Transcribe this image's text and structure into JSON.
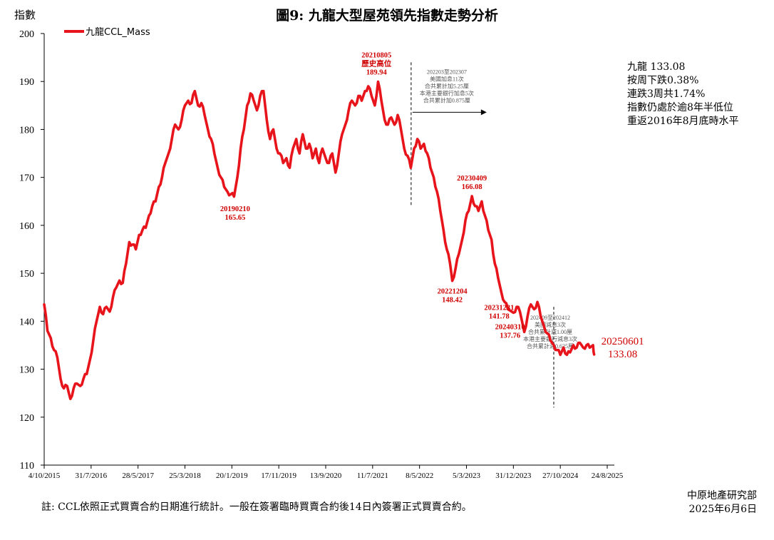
{
  "chart_data": {
    "type": "line",
    "title": "圖9: 九龍大型屋苑領先指數走勢分析",
    "ylabel": "指數",
    "ylim": [
      110,
      200
    ],
    "yticks": [
      110,
      120,
      130,
      140,
      150,
      160,
      170,
      180,
      190,
      200
    ],
    "x_ticks": [
      "4/10/2015",
      "31/7/2016",
      "28/5/2017",
      "25/3/2018",
      "20/1/2019",
      "17/11/2019",
      "13/9/2020",
      "11/7/2021",
      "8/5/2022",
      "5/3/2023",
      "31/12/2023",
      "27/10/2024",
      "24/8/2025"
    ],
    "grid": false,
    "legend_position": "top-left",
    "series": [
      {
        "name": "九龍CCL_Mass",
        "color": "#e8141b",
        "points": [
          [
            "2015-10-04",
            143.5
          ],
          [
            "2015-10-25",
            138
          ],
          [
            "2015-11-15",
            136.5
          ],
          [
            "2015-12-06",
            134
          ],
          [
            "2015-12-27",
            132.5
          ],
          [
            "2016-01-17",
            128
          ],
          [
            "2016-02-07",
            126
          ],
          [
            "2016-02-28",
            126.5
          ],
          [
            "2016-03-20",
            123.8
          ],
          [
            "2016-04-10",
            126
          ],
          [
            "2016-05-01",
            127
          ],
          [
            "2016-05-22",
            126.5
          ],
          [
            "2016-06-12",
            128
          ],
          [
            "2016-07-03",
            129
          ],
          [
            "2016-07-24",
            132
          ],
          [
            "2016-08-14",
            136
          ],
          [
            "2016-09-04",
            140
          ],
          [
            "2016-09-25",
            143
          ],
          [
            "2016-10-16",
            141.5
          ],
          [
            "2016-11-06",
            143
          ],
          [
            "2016-11-27",
            142
          ],
          [
            "2016-12-18",
            145
          ],
          [
            "2017-01-08",
            147
          ],
          [
            "2017-01-29",
            148.5
          ],
          [
            "2017-02-19",
            148
          ],
          [
            "2017-03-12",
            152
          ],
          [
            "2017-04-02",
            156.5
          ],
          [
            "2017-04-23",
            156
          ],
          [
            "2017-05-14",
            155
          ],
          [
            "2017-06-04",
            158
          ],
          [
            "2017-06-25",
            159
          ],
          [
            "2017-07-16",
            159.5
          ],
          [
            "2017-08-06",
            162
          ],
          [
            "2017-08-27",
            164
          ],
          [
            "2017-09-17",
            165
          ],
          [
            "2017-10-08",
            168
          ],
          [
            "2017-10-29",
            170
          ],
          [
            "2017-11-19",
            173
          ],
          [
            "2017-12-10",
            175
          ],
          [
            "2017-12-31",
            178
          ],
          [
            "2018-01-21",
            181
          ],
          [
            "2018-02-11",
            180
          ],
          [
            "2018-03-04",
            182
          ],
          [
            "2018-03-25",
            185
          ],
          [
            "2018-04-15",
            186
          ],
          [
            "2018-05-06",
            185.5
          ],
          [
            "2018-05-27",
            188
          ],
          [
            "2018-06-17",
            185
          ],
          [
            "2018-07-08",
            185.5
          ],
          [
            "2018-07-29",
            183
          ],
          [
            "2018-08-19",
            180
          ],
          [
            "2018-09-09",
            178
          ],
          [
            "2018-09-30",
            175
          ],
          [
            "2018-10-21",
            172
          ],
          [
            "2018-11-11",
            170
          ],
          [
            "2018-12-02",
            168
          ],
          [
            "2018-12-23",
            167
          ],
          [
            "2019-01-13",
            166.5
          ],
          [
            "2019-02-03",
            166
          ],
          [
            "2019-02-24",
            170
          ],
          [
            "2019-03-17",
            176
          ],
          [
            "2019-04-07",
            180
          ],
          [
            "2019-04-28",
            185
          ],
          [
            "2019-05-19",
            187.5
          ],
          [
            "2019-06-09",
            186
          ],
          [
            "2019-06-30",
            184
          ],
          [
            "2019-07-21",
            187
          ],
          [
            "2019-08-11",
            188
          ],
          [
            "2019-09-01",
            182
          ],
          [
            "2019-09-22",
            178
          ],
          [
            "2019-10-13",
            180
          ],
          [
            "2019-11-03",
            176
          ],
          [
            "2019-11-24",
            175
          ],
          [
            "2019-12-15",
            173
          ],
          [
            "2020-01-05",
            174
          ],
          [
            "2020-01-26",
            172
          ],
          [
            "2020-02-16",
            176
          ],
          [
            "2020-03-08",
            178
          ],
          [
            "2020-03-29",
            175
          ],
          [
            "2020-04-19",
            179
          ],
          [
            "2020-05-10",
            176
          ],
          [
            "2020-05-31",
            177
          ],
          [
            "2020-06-21",
            174
          ],
          [
            "2020-07-12",
            176
          ],
          [
            "2020-08-02",
            173
          ],
          [
            "2020-08-23",
            176
          ],
          [
            "2020-09-13",
            174
          ],
          [
            "2020-10-04",
            173
          ],
          [
            "2020-10-25",
            175
          ],
          [
            "2020-11-15",
            171
          ],
          [
            "2020-12-06",
            175
          ],
          [
            "2020-12-27",
            179
          ],
          [
            "2021-01-17",
            181
          ],
          [
            "2021-02-07",
            184
          ],
          [
            "2021-02-28",
            186
          ],
          [
            "2021-03-21",
            185
          ],
          [
            "2021-04-11",
            187
          ],
          [
            "2021-05-02",
            186
          ],
          [
            "2021-05-23",
            188
          ],
          [
            "2021-06-13",
            189
          ],
          [
            "2021-07-04",
            187
          ],
          [
            "2021-07-25",
            185
          ],
          [
            "2021-08-15",
            189.94
          ],
          [
            "2021-09-05",
            186
          ],
          [
            "2021-09-26",
            182
          ],
          [
            "2021-10-17",
            181
          ],
          [
            "2021-11-07",
            182.5
          ],
          [
            "2021-11-28",
            181
          ],
          [
            "2021-12-19",
            183
          ],
          [
            "2022-01-09",
            180
          ],
          [
            "2022-01-30",
            176
          ],
          [
            "2022-02-20",
            174.5
          ],
          [
            "2022-03-13",
            172
          ],
          [
            "2022-04-03",
            176
          ],
          [
            "2022-04-24",
            178
          ],
          [
            "2022-05-15",
            176
          ],
          [
            "2022-06-05",
            177
          ],
          [
            "2022-06-26",
            175
          ],
          [
            "2022-07-17",
            172
          ],
          [
            "2022-08-07",
            170
          ],
          [
            "2022-08-28",
            167
          ],
          [
            "2022-09-18",
            163
          ],
          [
            "2022-10-09",
            159
          ],
          [
            "2022-10-30",
            155
          ],
          [
            "2022-11-20",
            152
          ],
          [
            "2022-12-04",
            148.42
          ],
          [
            "2022-12-25",
            151
          ],
          [
            "2023-01-15",
            154
          ],
          [
            "2023-02-05",
            157
          ],
          [
            "2023-02-26",
            161
          ],
          [
            "2023-03-19",
            163
          ],
          [
            "2023-04-09",
            166.08
          ],
          [
            "2023-04-30",
            164
          ],
          [
            "2023-05-21",
            163
          ],
          [
            "2023-06-11",
            165
          ],
          [
            "2023-07-02",
            162
          ],
          [
            "2023-07-23",
            159
          ],
          [
            "2023-08-13",
            157
          ],
          [
            "2023-09-03",
            152
          ],
          [
            "2023-09-24",
            149
          ],
          [
            "2023-10-15",
            146
          ],
          [
            "2023-11-05",
            144
          ],
          [
            "2023-11-26",
            142.5
          ],
          [
            "2023-12-31",
            141.78
          ],
          [
            "2024-01-21",
            143
          ],
          [
            "2024-02-11",
            142
          ],
          [
            "2024-03-10",
            137.76
          ],
          [
            "2024-03-31",
            141
          ],
          [
            "2024-04-21",
            143.5
          ],
          [
            "2024-05-12",
            142.5
          ],
          [
            "2024-06-02",
            144
          ],
          [
            "2024-06-23",
            141
          ],
          [
            "2024-07-14",
            139
          ],
          [
            "2024-08-04",
            137.5
          ],
          [
            "2024-08-25",
            136
          ],
          [
            "2024-09-15",
            135
          ],
          [
            "2024-10-06",
            134
          ],
          [
            "2024-10-27",
            133
          ],
          [
            "2024-11-17",
            134.5
          ],
          [
            "2024-12-08",
            133
          ],
          [
            "2024-12-29",
            133.5
          ],
          [
            "2025-01-19",
            135
          ],
          [
            "2025-02-09",
            134.5
          ],
          [
            "2025-03-02",
            135.5
          ],
          [
            "2025-03-23",
            134.5
          ],
          [
            "2025-04-13",
            135
          ],
          [
            "2025-05-04",
            134.5
          ],
          [
            "2025-05-25",
            135
          ],
          [
            "2025-06-01",
            133.08
          ]
        ]
      }
    ],
    "annotations": [
      {
        "date": "2019-02-10",
        "value": 165.65,
        "lines": [
          "20190210",
          "165.65"
        ],
        "placement": "below"
      },
      {
        "date": "2021-08-05",
        "value": 189.94,
        "lines": [
          "20210805",
          "歷史高位",
          "189.94"
        ],
        "placement": "above"
      },
      {
        "date": "2023-04-09",
        "value": 166.08,
        "lines": [
          "20230409",
          "166.08"
        ],
        "placement": "above"
      },
      {
        "date": "2022-12-04",
        "value": 148.42,
        "lines": [
          "20221204",
          "148.42"
        ],
        "placement": "below"
      },
      {
        "date": "2023-12-31",
        "value": 141.78,
        "lines": [
          "20231231",
          "141.78"
        ],
        "placement": "left"
      },
      {
        "date": "2024-03-10",
        "value": 137.76,
        "lines": [
          "20240310",
          "137.76"
        ],
        "placement": "left"
      }
    ],
    "latest_label": {
      "lines": [
        "20250601",
        "133.08"
      ]
    },
    "policy_notes": [
      {
        "date": "2022-03-15",
        "range": [
          164,
          194
        ],
        "lines": [
          "202203至202307",
          "美國加息11次",
          "合共累計加5.25厘",
          "本港主要銀行加息5次",
          "合共累計加0.875厘"
        ],
        "arrow": true
      },
      {
        "date": "2024-09-15",
        "range": [
          122,
          143
        ],
        "lines": [
          "202409至202412",
          "美國減息3次",
          "合共累計減1.00厘",
          "本港主要銀行減息3次",
          "合共累計減0.625厘"
        ],
        "arrow": false
      }
    ]
  },
  "side_note": [
    "九龍 133.08",
    "按周下跌0.38%",
    "連跌3周共1.74%",
    "指數仍處於逾8年半低位",
    "重返2016年8月底時水平"
  ],
  "footnote": "註: CCL依照正式買賣合約日期進行統計。一般在簽署臨時買賣合約後14日內簽署正式買賣合約。",
  "source": {
    "org": "中原地產研究部",
    "date": "2025年6月6日"
  }
}
